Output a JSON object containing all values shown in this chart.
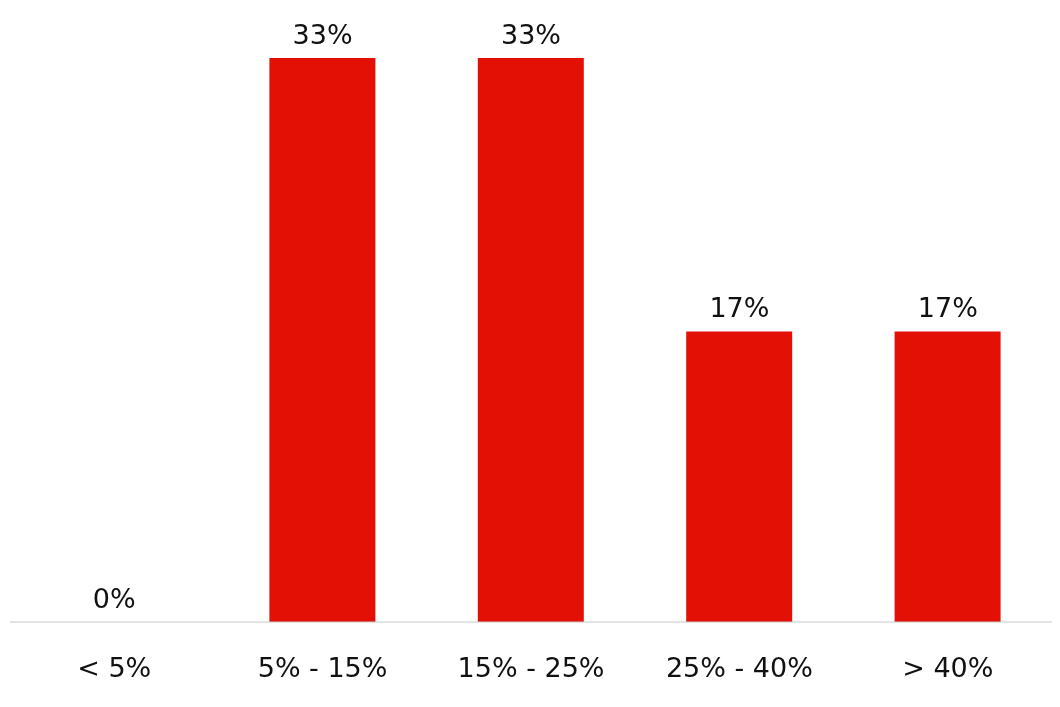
{
  "chart_data": {
    "type": "bar",
    "categories": [
      "< 5%",
      "5% - 15%",
      "15% - 25%",
      "25% - 40%",
      "> 40%"
    ],
    "values": [
      0,
      33,
      33,
      17,
      17
    ],
    "value_labels": [
      "0%",
      "33%",
      "33%",
      "17%",
      "17%"
    ],
    "color": "#e31005",
    "grid": false,
    "legend": false
  }
}
